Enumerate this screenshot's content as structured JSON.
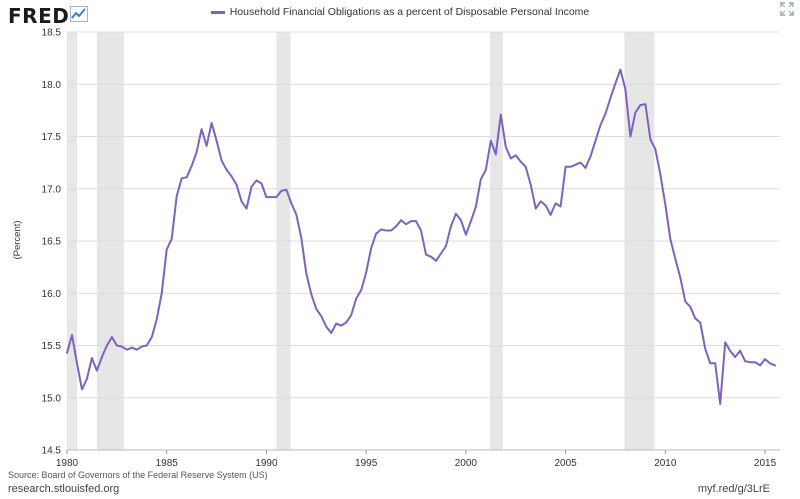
{
  "branding": {
    "logo_text": "FRED",
    "logo_icon": "trend-chart-icon",
    "expand_icon": "expand-arrows-icon"
  },
  "footer": {
    "source": "Source: Board of Governors of the Federal Reserve System (US)",
    "site": "research.stlouisfed.org",
    "short_url": "myf.red/g/3LrE"
  },
  "colors": {
    "series": "#7e63be",
    "recession": "#e6e6e6",
    "grid": "#dcdcdc",
    "logo_accent": "#3f7fbf"
  },
  "chart_data": {
    "type": "line",
    "title": "",
    "xlabel": "",
    "ylabel": "(Percent)",
    "xlim": [
      1980,
      2015.75
    ],
    "ylim": [
      14.5,
      18.5
    ],
    "xticks": [
      1980,
      1985,
      1990,
      1995,
      2000,
      2005,
      2010,
      2015
    ],
    "xtick_labels": [
      "1980",
      "1985",
      "1990",
      "1995",
      "2000",
      "2005",
      "2010",
      "2015"
    ],
    "yticks": [
      14.5,
      15.0,
      15.5,
      16.0,
      16.5,
      17.0,
      17.5,
      18.0,
      18.5
    ],
    "ytick_labels": [
      "14.5",
      "15.0",
      "15.5",
      "16.0",
      "16.5",
      "17.0",
      "17.5",
      "18.0",
      "18.5"
    ],
    "grid": true,
    "legend": "top-center",
    "recessions": [
      [
        1980.0,
        1980.5
      ],
      [
        1981.5,
        1982.85
      ],
      [
        1990.5,
        1991.2
      ],
      [
        2001.2,
        2001.85
      ],
      [
        2007.95,
        2009.45
      ]
    ],
    "series": [
      {
        "name": "Household Financial Obligations as a percent of Disposable Personal Income",
        "x": [
          1980.0,
          1980.25,
          1980.5,
          1980.75,
          1981.0,
          1981.25,
          1981.5,
          1981.75,
          1982.0,
          1982.25,
          1982.5,
          1982.75,
          1983.0,
          1983.25,
          1983.5,
          1983.75,
          1984.0,
          1984.25,
          1984.5,
          1984.75,
          1985.0,
          1985.25,
          1985.5,
          1985.75,
          1986.0,
          1986.25,
          1986.5,
          1986.75,
          1987.0,
          1987.25,
          1987.5,
          1987.75,
          1988.0,
          1988.25,
          1988.5,
          1988.75,
          1989.0,
          1989.25,
          1989.5,
          1989.75,
          1990.0,
          1990.25,
          1990.5,
          1990.75,
          1991.0,
          1991.25,
          1991.5,
          1991.75,
          1992.0,
          1992.25,
          1992.5,
          1992.75,
          1993.0,
          1993.25,
          1993.5,
          1993.75,
          1994.0,
          1994.25,
          1994.5,
          1994.75,
          1995.0,
          1995.25,
          1995.5,
          1995.75,
          1996.0,
          1996.25,
          1996.5,
          1996.75,
          1997.0,
          1997.25,
          1997.5,
          1997.75,
          1998.0,
          1998.25,
          1998.5,
          1998.75,
          1999.0,
          1999.25,
          1999.5,
          1999.75,
          2000.0,
          2000.25,
          2000.5,
          2000.75,
          2001.0,
          2001.25,
          2001.5,
          2001.75,
          2002.0,
          2002.25,
          2002.5,
          2002.75,
          2003.0,
          2003.25,
          2003.5,
          2003.75,
          2004.0,
          2004.25,
          2004.5,
          2004.75,
          2005.0,
          2005.25,
          2005.5,
          2005.75,
          2006.0,
          2006.25,
          2006.5,
          2006.75,
          2007.0,
          2007.25,
          2007.5,
          2007.75,
          2008.0,
          2008.25,
          2008.5,
          2008.75,
          2009.0,
          2009.25,
          2009.5,
          2009.75,
          2010.0,
          2010.25,
          2010.5,
          2010.75,
          2011.0,
          2011.25,
          2011.5,
          2011.75,
          2012.0,
          2012.25,
          2012.5,
          2012.75,
          2013.0,
          2013.25,
          2013.5,
          2013.75,
          2014.0,
          2014.25,
          2014.5,
          2014.75,
          2015.0,
          2015.25,
          2015.5
        ],
        "values": [
          15.43,
          15.6,
          15.33,
          15.08,
          15.18,
          15.38,
          15.26,
          15.39,
          15.5,
          15.58,
          15.5,
          15.49,
          15.46,
          15.48,
          15.46,
          15.49,
          15.5,
          15.58,
          15.75,
          16.0,
          16.42,
          16.52,
          16.93,
          17.1,
          17.11,
          17.22,
          17.35,
          17.57,
          17.41,
          17.63,
          17.46,
          17.27,
          17.18,
          17.12,
          17.04,
          16.88,
          16.81,
          17.02,
          17.08,
          17.05,
          16.92,
          16.92,
          16.92,
          16.98,
          16.99,
          16.86,
          16.75,
          16.53,
          16.19,
          15.99,
          15.85,
          15.78,
          15.68,
          15.62,
          15.71,
          15.69,
          15.72,
          15.79,
          15.95,
          16.03,
          16.2,
          16.43,
          16.57,
          16.61,
          16.6,
          16.6,
          16.64,
          16.7,
          16.66,
          16.69,
          16.69,
          16.6,
          16.37,
          16.35,
          16.31,
          16.38,
          16.45,
          16.64,
          16.76,
          16.7,
          16.56,
          16.69,
          16.83,
          17.09,
          17.18,
          17.46,
          17.33,
          17.71,
          17.4,
          17.29,
          17.32,
          17.26,
          17.21,
          17.04,
          16.81,
          16.88,
          16.84,
          16.75,
          16.86,
          16.83,
          17.21,
          17.21,
          17.23,
          17.25,
          17.2,
          17.31,
          17.46,
          17.61,
          17.72,
          17.87,
          18.01,
          18.14,
          17.95,
          17.5,
          17.73,
          17.8,
          17.81,
          17.47,
          17.38,
          17.14,
          16.85,
          16.52,
          16.33,
          16.15,
          15.92,
          15.87,
          15.76,
          15.72,
          15.47,
          15.33,
          15.33,
          14.94,
          15.53,
          15.45,
          15.39,
          15.45,
          15.35,
          15.34,
          15.34,
          15.31,
          15.37,
          15.33,
          15.31
        ]
      }
    ]
  }
}
